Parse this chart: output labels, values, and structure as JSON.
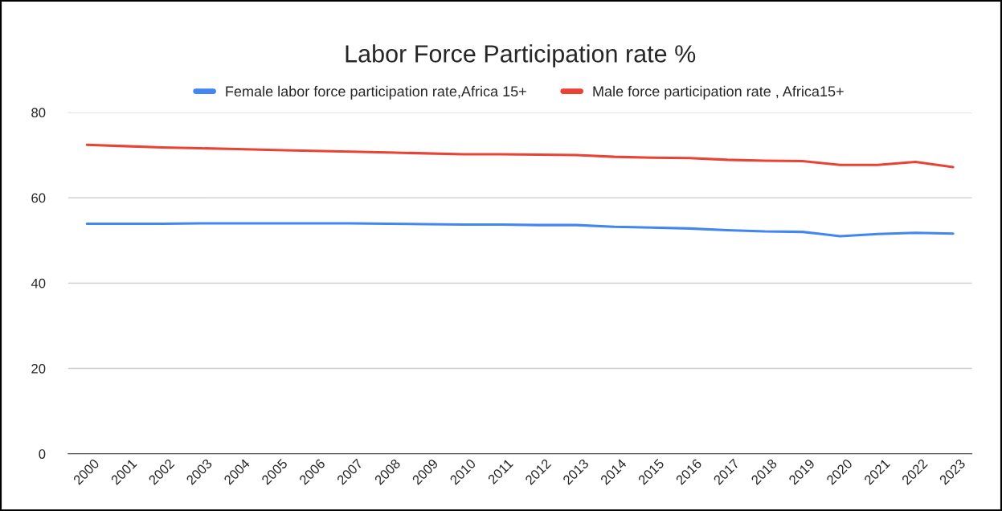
{
  "chart_data": {
    "type": "line",
    "title": "Labor Force Participation rate %",
    "categories": [
      "2000",
      "2001",
      "2002",
      "2003",
      "2004",
      "2005",
      "2006",
      "2007",
      "2008",
      "2009",
      "2010",
      "2011",
      "2012",
      "2013",
      "2014",
      "2015",
      "2016",
      "2017",
      "2018",
      "2019",
      "2020",
      "2021",
      "2022",
      "2023"
    ],
    "series": [
      {
        "name": "Female labor force participation rate,Africa 15+",
        "color": "#4285f4",
        "values": [
          53.9,
          53.9,
          53.9,
          54.0,
          54.0,
          54.0,
          54.0,
          54.0,
          53.9,
          53.8,
          53.7,
          53.7,
          53.6,
          53.6,
          53.2,
          53.0,
          52.8,
          52.4,
          52.1,
          52.0,
          51.0,
          51.5,
          51.8,
          51.6
        ]
      },
      {
        "name": "Male force participation rate , Africa15+",
        "color": "#ea4335",
        "values": [
          72.4,
          72.1,
          71.8,
          71.6,
          71.4,
          71.2,
          71.0,
          70.8,
          70.6,
          70.4,
          70.2,
          70.2,
          70.1,
          70.0,
          69.6,
          69.4,
          69.3,
          68.9,
          68.7,
          68.6,
          67.7,
          67.7,
          68.4,
          67.2
        ]
      }
    ],
    "ylim": [
      0,
      80
    ],
    "yticks": [
      0,
      20,
      40,
      60,
      80
    ],
    "grid": "y",
    "legend": "top",
    "marker": "none",
    "line_style": "solid"
  }
}
